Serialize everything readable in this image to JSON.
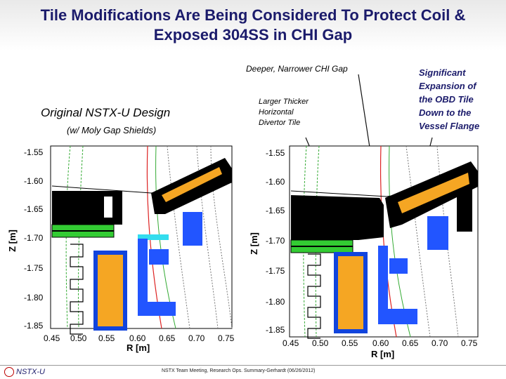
{
  "slide": {
    "title_line1": "Tile Modifications Are Being Considered To Protect Coil &",
    "title_line2": "Exposed 304SS in CHI Gap"
  },
  "labels": {
    "deeper": "Deeper, Narrower CHI Gap",
    "larger_line1": "Larger Thicker",
    "larger_line2": "Horizontal",
    "larger_line3": "Divertor Tile",
    "original": "Original NSTX-U Design",
    "moly": "(w/ Moly Gap Shields)",
    "sig_line1": "Significant",
    "sig_line2": "Expansion of",
    "sig_line3": "the OBD Tile",
    "sig_line4": "Down to the",
    "sig_line5": "Vessel Flange"
  },
  "left_plot": {
    "ylabel": "Z [m]",
    "xlabel": "R [m]",
    "y_ticks": [
      "-1.55",
      "-1.60",
      "-1.65",
      "-1.70",
      "-1.75",
      "-1.80",
      "-1.85"
    ],
    "x_ticks": [
      "0.45",
      "0.50",
      "0.55",
      "0.60",
      "0.65",
      "0.70",
      "0.75"
    ]
  },
  "right_plot": {
    "ylabel": "Z [m]",
    "xlabel": "R [m]",
    "y_ticks": [
      "-1.55",
      "-1.60",
      "-1.65",
      "-1.70",
      "-1.75",
      "-1.80",
      "-1.85"
    ],
    "x_ticks": [
      "0.45",
      "0.50",
      "0.55",
      "0.60",
      "0.65",
      "0.70",
      "0.75"
    ]
  },
  "footer": {
    "logo": "NSTX-U",
    "meeting": "NSTX Team Meeting, Research Ops. Summary-Gerhardt (06/26/2012)"
  },
  "colors": {
    "title": "#1b1b6b",
    "tile": "#000000",
    "coil_orange": "#f5a623",
    "steel_blue": "#2255ff",
    "green_tile": "#33cc33",
    "cyan_shield": "#33ddee"
  }
}
